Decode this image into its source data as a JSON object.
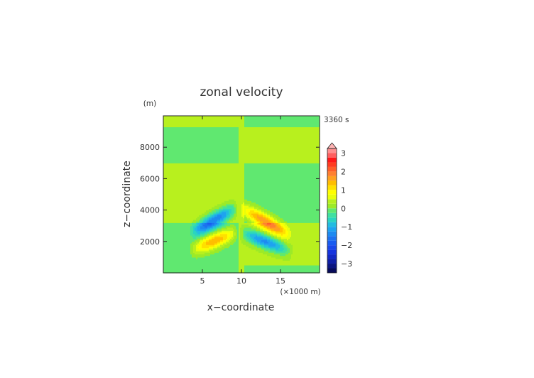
{
  "chart_data": {
    "type": "heatmap",
    "title": "zonal velocity",
    "xlabel": "x−coordinate",
    "ylabel": "z−coordinate",
    "x_unit": "(×1000 m)",
    "y_unit": "(m)",
    "time_label": "3360 s",
    "xlim": [
      0,
      20
    ],
    "ylim": [
      0,
      10000
    ],
    "x_ticks": [
      5,
      10,
      15
    ],
    "y_ticks": [
      2000,
      4000,
      6000,
      8000
    ],
    "colorbar": {
      "levels": [
        -3.5,
        -3.25,
        -3,
        -2.75,
        -2.5,
        -2.25,
        -2,
        -1.75,
        -1.5,
        -1.25,
        -1,
        -0.75,
        -0.5,
        -0.25,
        0,
        0.25,
        0.5,
        0.75,
        1,
        1.25,
        1.5,
        1.75,
        2,
        2.25,
        2.5,
        2.75,
        3,
        3.25,
        3.5
      ],
      "colors": [
        "#070b5a",
        "#0b1580",
        "#0f1fa6",
        "#1228c4",
        "#1634de",
        "#1a48ea",
        "#1a5cf0",
        "#1c72f0",
        "#1d8af0",
        "#1ea3f0",
        "#22bce0",
        "#2ad4c0",
        "#40e0a0",
        "#60e870",
        "#9cea28",
        "#b8f01e",
        "#e8ff0c",
        "#ffff00",
        "#ffe000",
        "#ffbe00",
        "#ffa020",
        "#ff8030",
        "#ff5e28",
        "#ff3c20",
        "#ff1818",
        "#ff6060",
        "#ff9090",
        "#ffb4b4"
      ],
      "tick_labels": [
        "3",
        "2",
        "1",
        "0",
        "−1",
        "−2",
        "−3"
      ],
      "tick_values": [
        3,
        2,
        1,
        0,
        -1,
        -2,
        -3
      ]
    },
    "features": [
      {
        "x0": 8.8,
        "z0": 4000,
        "x1": 2.0,
        "z1": 2150,
        "peak": -1.8,
        "width": 580
      },
      {
        "x0": 8.8,
        "z0": 2500,
        "x1": 2.0,
        "z1": 1150,
        "peak": 1.6,
        "width": 560
      },
      {
        "x0": 10.5,
        "z0": 4000,
        "x1": 18.0,
        "z1": 1950,
        "peak": 1.8,
        "width": 560
      },
      {
        "x0": 10.5,
        "z0": 2500,
        "x1": 18.0,
        "z1": 1050,
        "peak": -1.6,
        "width": 520
      }
    ]
  }
}
